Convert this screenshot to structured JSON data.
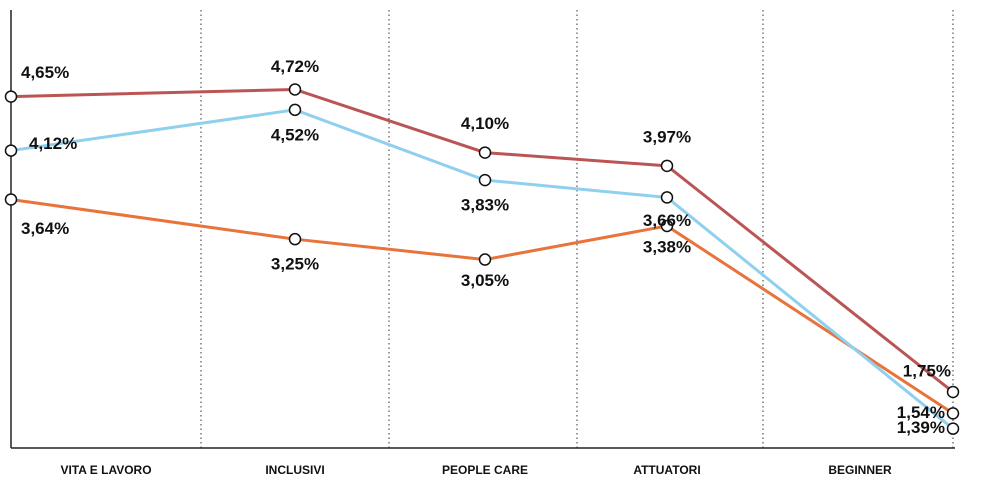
{
  "chart_data": {
    "type": "line",
    "categories": [
      "VITA E LAVORO",
      "INCLUSIVI",
      "PEOPLE CARE",
      "ATTUATORI",
      "BEGINNER"
    ],
    "ylim": [
      1.2,
      5.5
    ],
    "series": [
      {
        "color": "#e8743b",
        "values": [
          3.64,
          3.25,
          3.05,
          3.38,
          1.54
        ],
        "value_labels": [
          "3,64%",
          "3,25%",
          "3,05%",
          "3,38%",
          "1,54%"
        ]
      },
      {
        "color": "#8fd0ee",
        "values": [
          4.12,
          4.52,
          3.83,
          3.66,
          1.39
        ],
        "value_labels": [
          "4,12%",
          "4,52%",
          "3,83%",
          "3,66%",
          "1,39%"
        ]
      },
      {
        "color": "#bb5555",
        "values": [
          4.65,
          4.72,
          4.1,
          3.97,
          1.75
        ],
        "value_labels": [
          "4,65%",
          "4,72%",
          "4,10%",
          "3,97%",
          "1,75%"
        ]
      }
    ]
  }
}
